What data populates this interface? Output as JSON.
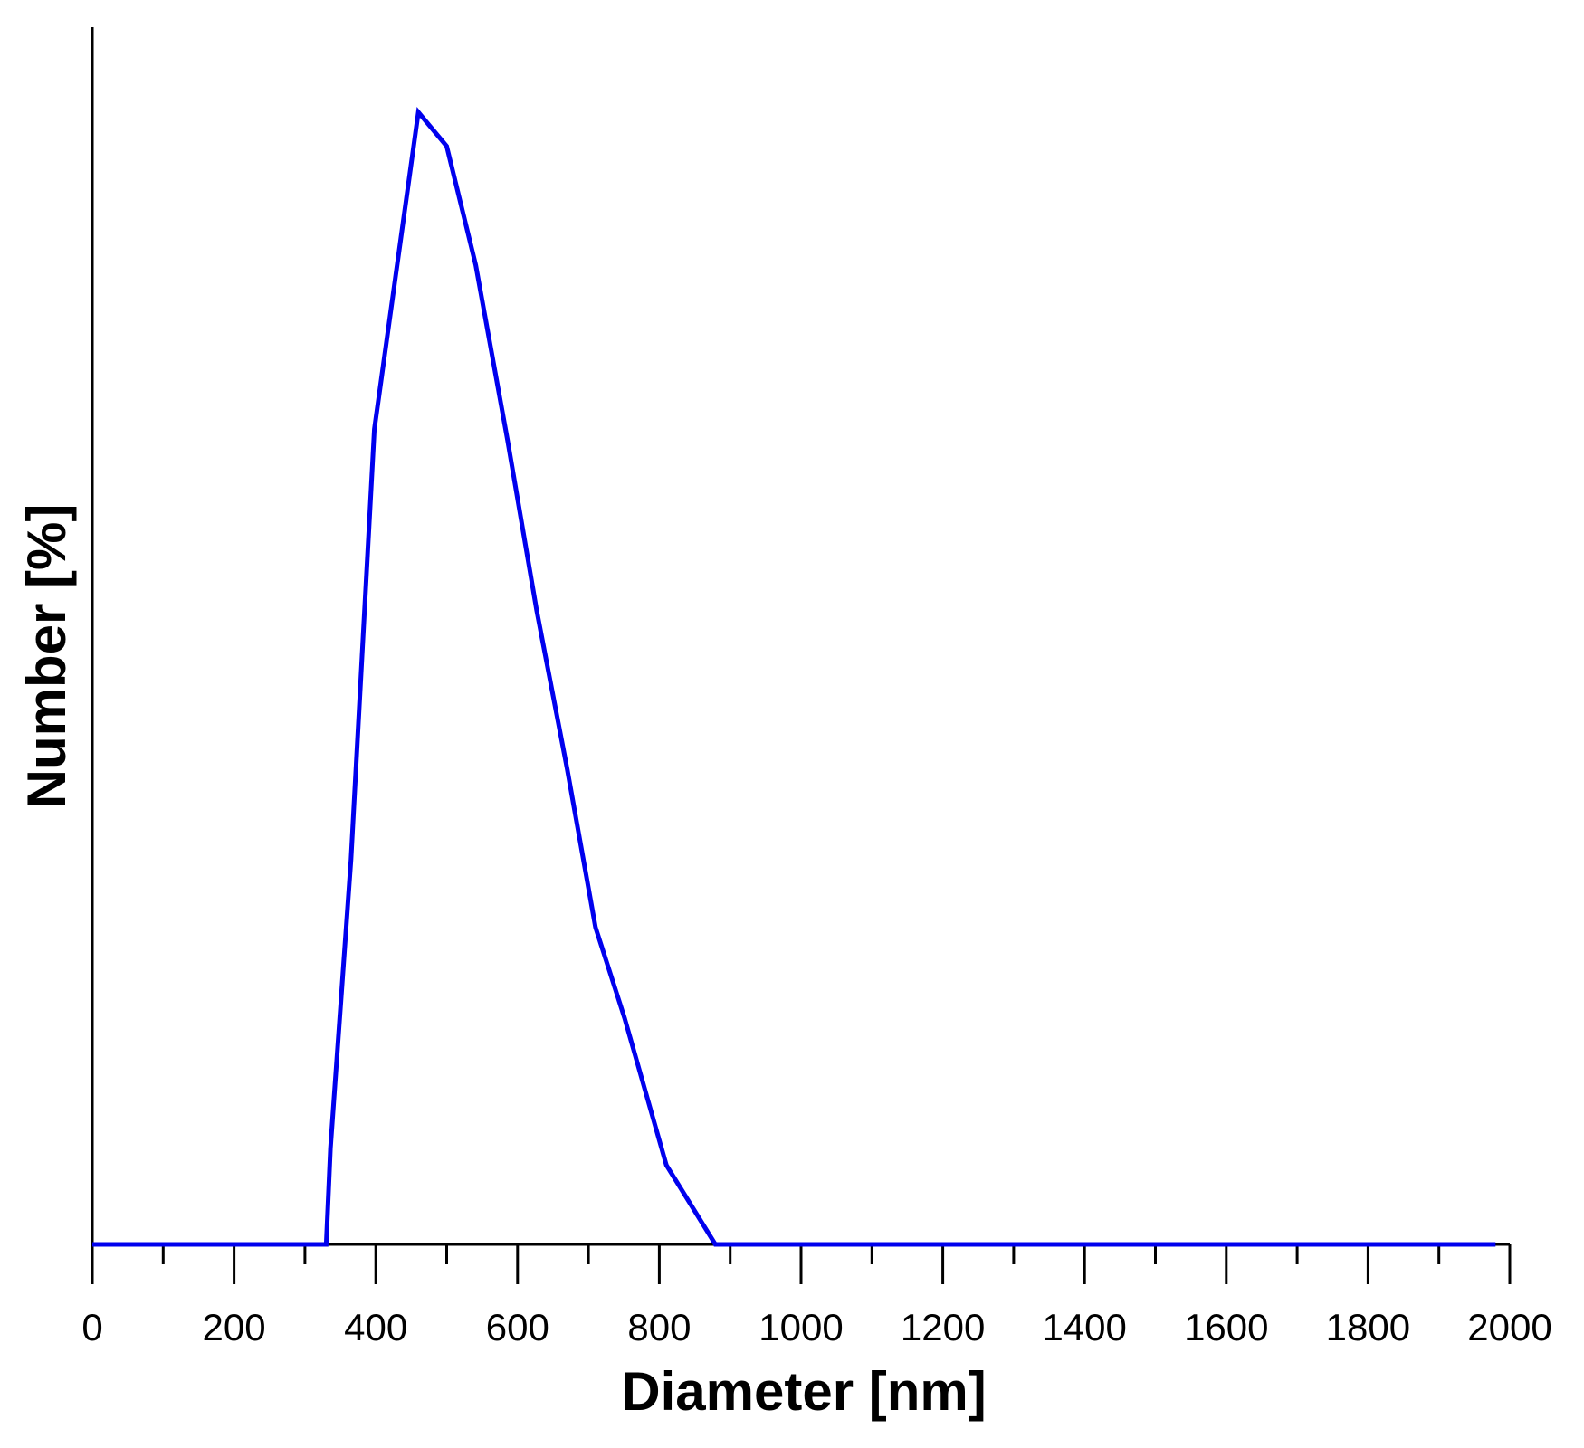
{
  "chart_data": {
    "type": "line",
    "title": "",
    "xlabel": "Diameter [nm]",
    "ylabel": "Number [%]",
    "xlim": [
      0,
      2000
    ],
    "ylim": [
      0,
      100
    ],
    "x_ticks": [
      "0",
      "200",
      "400",
      "600",
      "800",
      "1000",
      "1200",
      "1400",
      "1600",
      "1800",
      "2000"
    ],
    "x_minor_step": 100,
    "y_ticks": [],
    "grid": false,
    "legend": "none",
    "colors": {
      "line": "#0000ee",
      "axis": "#000000"
    },
    "series": [
      {
        "x": [
          0,
          330,
          336,
          365,
          398,
          460,
          500,
          541,
          586,
          627,
          670,
          710,
          751,
          810,
          879,
          1980
        ],
        "y": [
          0,
          0,
          8.5,
          34,
          72,
          100,
          97,
          86.5,
          71,
          56,
          42,
          28,
          20,
          7,
          0,
          0
        ]
      }
    ]
  }
}
